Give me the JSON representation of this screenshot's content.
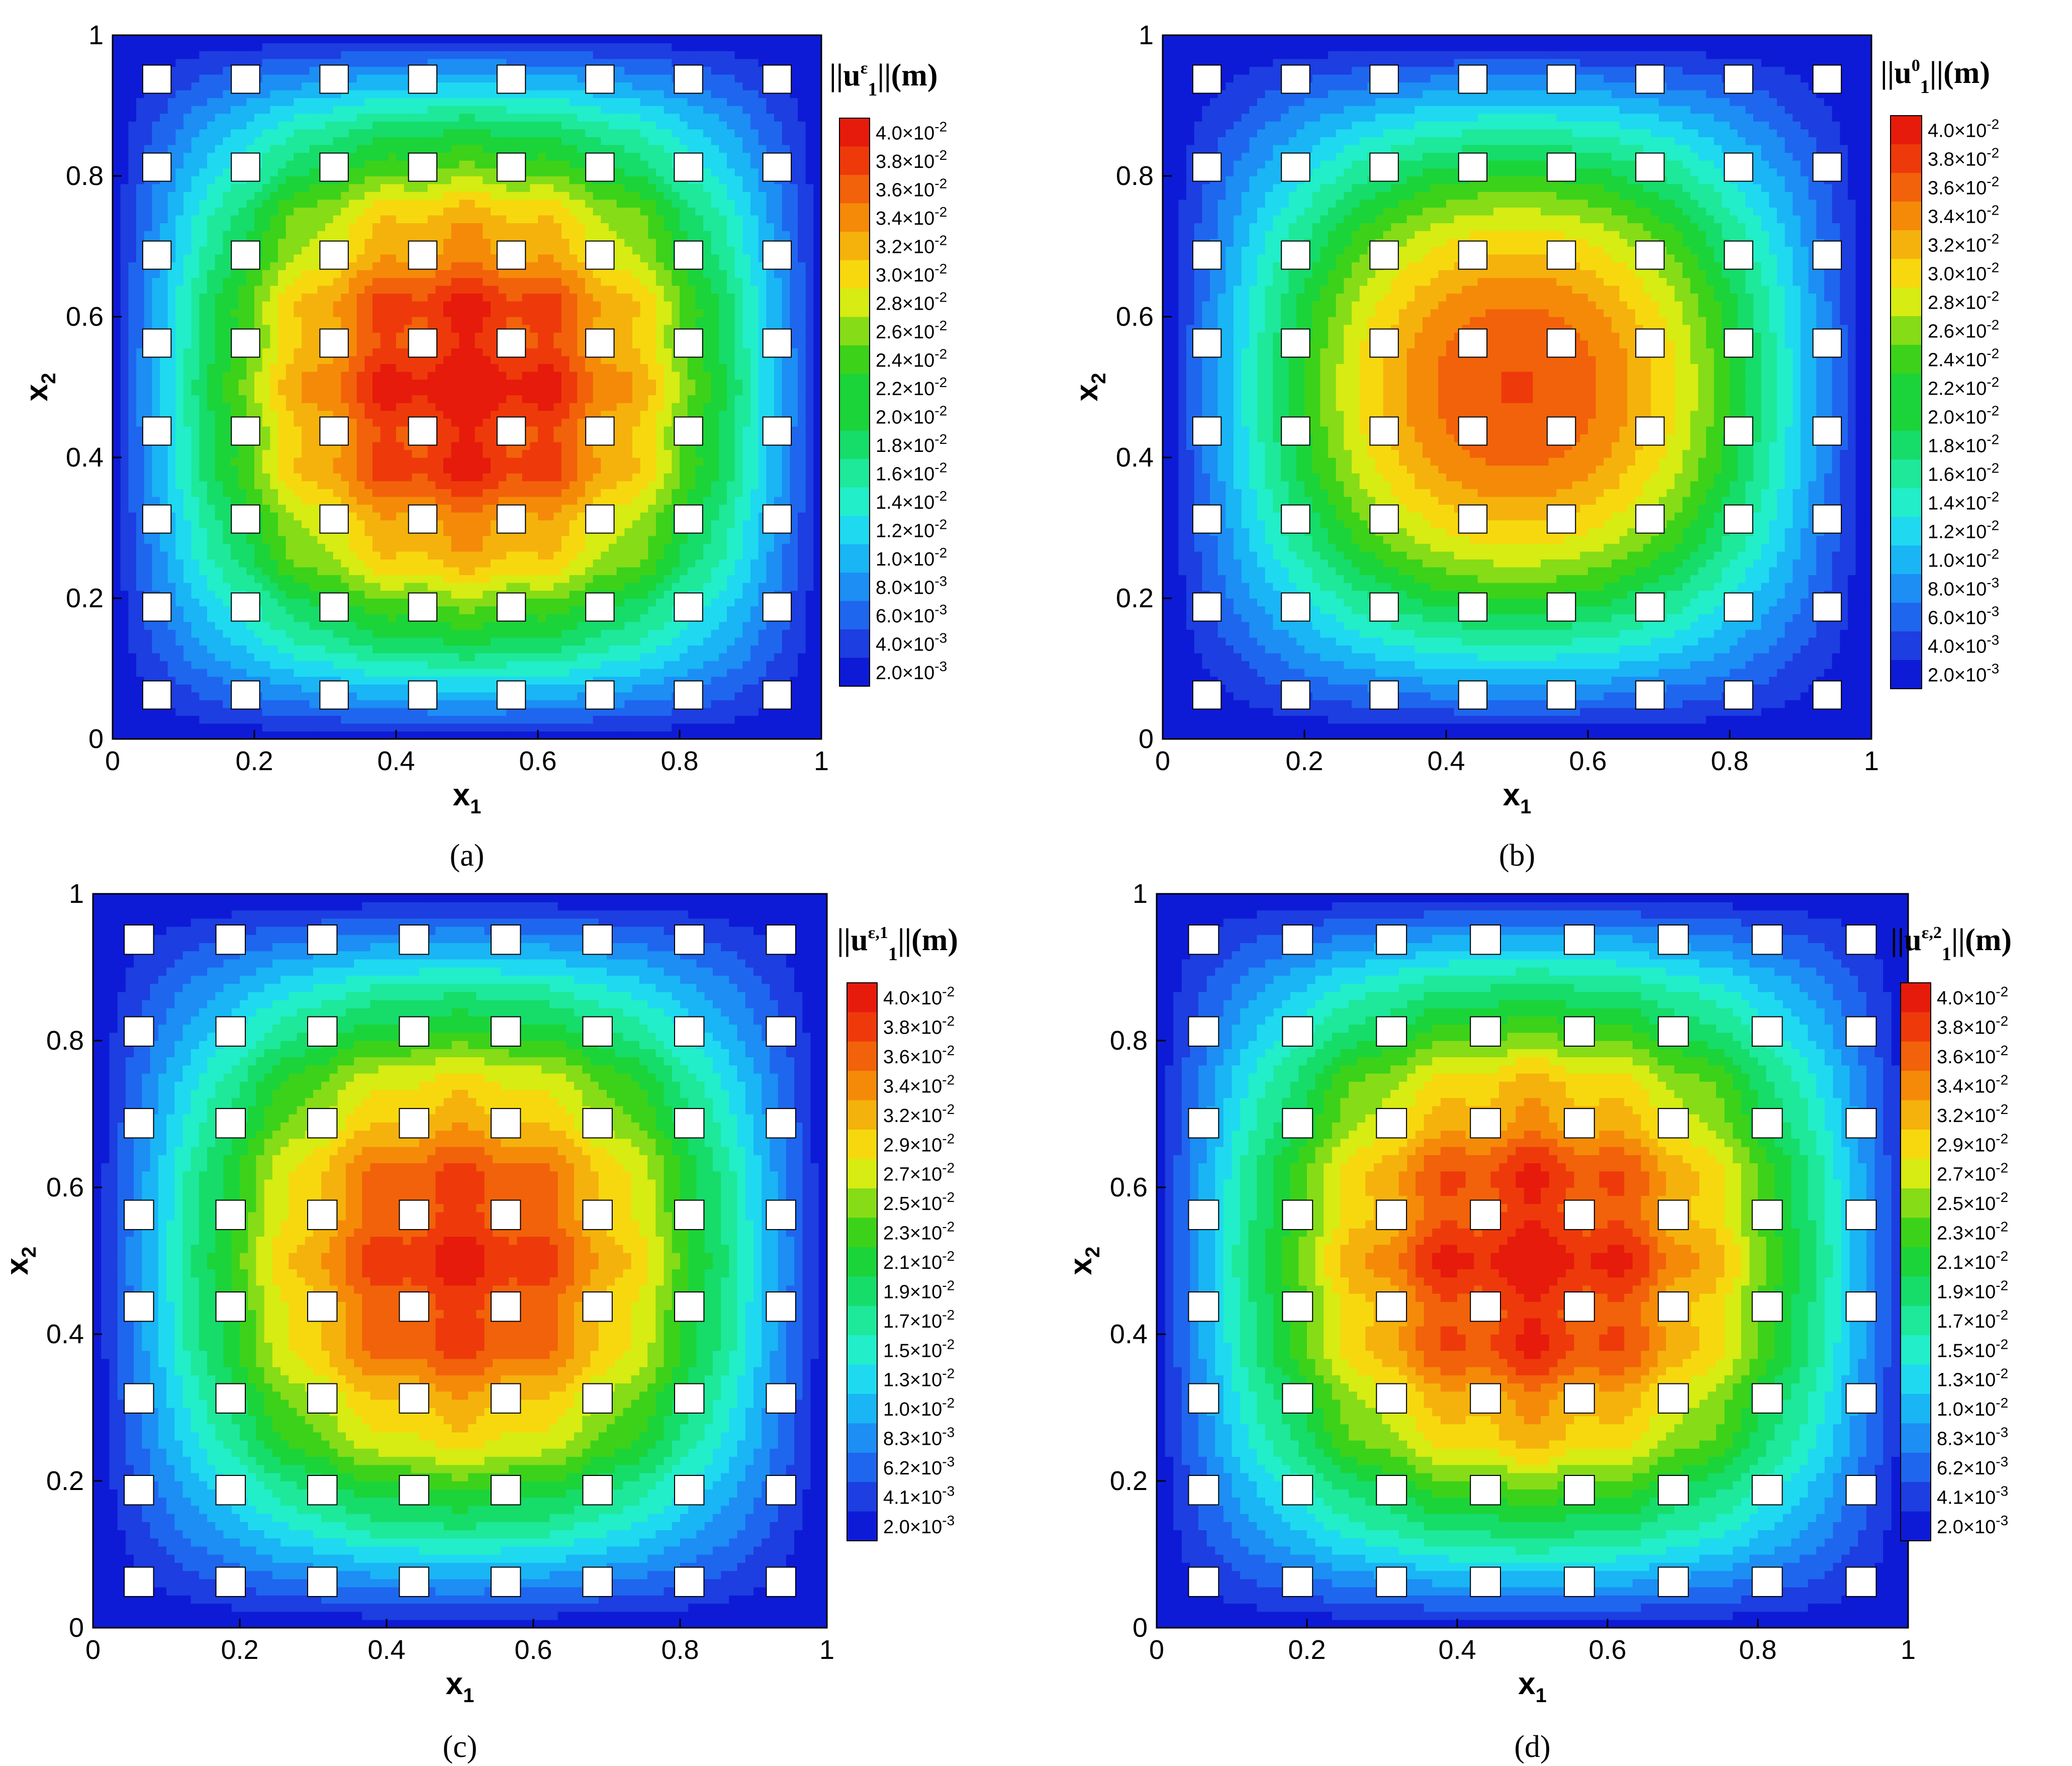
{
  "levels": [
    "#0d1bd6",
    "#1d3ee0",
    "#1f66ee",
    "#1c8ef4",
    "#19b5f5",
    "#1fd9f0",
    "#22eec9",
    "#1ee89a",
    "#16dc6a",
    "#1bd43a",
    "#3cd21a",
    "#86dc17",
    "#d6ec12",
    "#f7d80f",
    "#f5b20c",
    "#f58a09",
    "#f2620a",
    "#ee3a0b",
    "#e61b0b"
  ],
  "chart_data": [
    {
      "id": "a",
      "type": "heatmap",
      "caption": "(a)",
      "title": {
        "prefix": "||u",
        "sub": "1",
        "sup": "ε",
        "suffix": "||(m)"
      },
      "xlabel": {
        "base": "x",
        "sub": "1"
      },
      "ylabel": {
        "base": "x",
        "sub": "2"
      },
      "xlim": [
        0,
        1
      ],
      "ylim": [
        0,
        1
      ],
      "x_ticks": [
        "0",
        "0.2",
        "0.4",
        "0.6",
        "0.8",
        "1"
      ],
      "y_ticks": [
        "0",
        "0.2",
        "0.4",
        "0.6",
        "0.8",
        "1"
      ],
      "field": {
        "peak": 0.04,
        "min": 0.002,
        "shape": "periodic",
        "wiggle": 0.55,
        "plateau": 0.85
      },
      "colorbar_levels": [
        {
          "m": "4.0",
          "e": "-2"
        },
        {
          "m": "3.8",
          "e": "-2"
        },
        {
          "m": "3.6",
          "e": "-2"
        },
        {
          "m": "3.4",
          "e": "-2"
        },
        {
          "m": "3.2",
          "e": "-2"
        },
        {
          "m": "3.0",
          "e": "-2"
        },
        {
          "m": "2.8",
          "e": "-2"
        },
        {
          "m": "2.6",
          "e": "-2"
        },
        {
          "m": "2.4",
          "e": "-2"
        },
        {
          "m": "2.2",
          "e": "-2"
        },
        {
          "m": "2.0",
          "e": "-2"
        },
        {
          "m": "1.8",
          "e": "-2"
        },
        {
          "m": "1.6",
          "e": "-2"
        },
        {
          "m": "1.4",
          "e": "-2"
        },
        {
          "m": "1.2",
          "e": "-2"
        },
        {
          "m": "1.0",
          "e": "-2"
        },
        {
          "m": "8.0",
          "e": "-3"
        },
        {
          "m": "6.0",
          "e": "-3"
        },
        {
          "m": "4.0",
          "e": "-3"
        },
        {
          "m": "2.0",
          "e": "-3"
        }
      ]
    },
    {
      "id": "b",
      "type": "heatmap",
      "caption": "(b)",
      "title": {
        "prefix": "||u",
        "sub": "1",
        "sup": "0",
        "suffix": "||(m)"
      },
      "xlabel": {
        "base": "x",
        "sub": "1"
      },
      "ylabel": {
        "base": "x",
        "sub": "2"
      },
      "xlim": [
        0,
        1
      ],
      "ylim": [
        0,
        1
      ],
      "x_ticks": [
        "0",
        "0.2",
        "0.4",
        "0.6",
        "0.8",
        "1"
      ],
      "y_ticks": [
        "0",
        "0.2",
        "0.4",
        "0.6",
        "0.8",
        "1"
      ],
      "field": {
        "peak": 0.037,
        "min": 0.002,
        "shape": "smooth",
        "wiggle": 0.0,
        "plateau": 1.0
      },
      "colorbar_levels": [
        {
          "m": "4.0",
          "e": "-2"
        },
        {
          "m": "3.8",
          "e": "-2"
        },
        {
          "m": "3.6",
          "e": "-2"
        },
        {
          "m": "3.4",
          "e": "-2"
        },
        {
          "m": "3.2",
          "e": "-2"
        },
        {
          "m": "3.0",
          "e": "-2"
        },
        {
          "m": "2.8",
          "e": "-2"
        },
        {
          "m": "2.6",
          "e": "-2"
        },
        {
          "m": "2.4",
          "e": "-2"
        },
        {
          "m": "2.2",
          "e": "-2"
        },
        {
          "m": "2.0",
          "e": "-2"
        },
        {
          "m": "1.8",
          "e": "-2"
        },
        {
          "m": "1.6",
          "e": "-2"
        },
        {
          "m": "1.4",
          "e": "-2"
        },
        {
          "m": "1.2",
          "e": "-2"
        },
        {
          "m": "1.0",
          "e": "-2"
        },
        {
          "m": "8.0",
          "e": "-3"
        },
        {
          "m": "6.0",
          "e": "-3"
        },
        {
          "m": "4.0",
          "e": "-3"
        },
        {
          "m": "2.0",
          "e": "-3"
        }
      ]
    },
    {
      "id": "c",
      "type": "heatmap",
      "caption": "(c)",
      "title": {
        "prefix": "||u",
        "sub": "1",
        "sup": "ε,1",
        "suffix": "||(m)"
      },
      "xlabel": {
        "base": "x",
        "sub": "1"
      },
      "ylabel": {
        "base": "x",
        "sub": "2"
      },
      "xlim": [
        0,
        1
      ],
      "ylim": [
        0,
        1
      ],
      "x_ticks": [
        "0",
        "0.2",
        "0.4",
        "0.6",
        "0.8",
        "1"
      ],
      "y_ticks": [
        "0",
        "0.2",
        "0.4",
        "0.6",
        "0.8",
        "1"
      ],
      "field": {
        "peak": 0.0385,
        "min": 0.002,
        "shape": "periodic",
        "wiggle": 0.4,
        "plateau": 0.95
      },
      "colorbar_levels": [
        {
          "m": "4.0",
          "e": "-2"
        },
        {
          "m": "3.8",
          "e": "-2"
        },
        {
          "m": "3.6",
          "e": "-2"
        },
        {
          "m": "3.4",
          "e": "-2"
        },
        {
          "m": "3.2",
          "e": "-2"
        },
        {
          "m": "2.9",
          "e": "-2"
        },
        {
          "m": "2.7",
          "e": "-2"
        },
        {
          "m": "2.5",
          "e": "-2"
        },
        {
          "m": "2.3",
          "e": "-2"
        },
        {
          "m": "2.1",
          "e": "-2"
        },
        {
          "m": "1.9",
          "e": "-2"
        },
        {
          "m": "1.7",
          "e": "-2"
        },
        {
          "m": "1.5",
          "e": "-2"
        },
        {
          "m": "1.3",
          "e": "-2"
        },
        {
          "m": "1.0",
          "e": "-2"
        },
        {
          "m": "8.3",
          "e": "-3"
        },
        {
          "m": "6.2",
          "e": "-3"
        },
        {
          "m": "4.1",
          "e": "-3"
        },
        {
          "m": "2.0",
          "e": "-3"
        }
      ]
    },
    {
      "id": "d",
      "type": "heatmap",
      "caption": "(d)",
      "title": {
        "prefix": "||u",
        "sub": "1",
        "sup": "ε,2",
        "suffix": "||(m)"
      },
      "xlabel": {
        "base": "x",
        "sub": "1"
      },
      "ylabel": {
        "base": "x",
        "sub": "2"
      },
      "xlim": [
        0,
        1
      ],
      "ylim": [
        0,
        1
      ],
      "x_ticks": [
        "0",
        "0.2",
        "0.4",
        "0.6",
        "0.8",
        "1"
      ],
      "y_ticks": [
        "0",
        "0.2",
        "0.4",
        "0.6",
        "0.8",
        "1"
      ],
      "field": {
        "peak": 0.0395,
        "min": 0.002,
        "shape": "periodic",
        "wiggle": 0.55,
        "plateau": 0.87
      },
      "colorbar_levels": [
        {
          "m": "4.0",
          "e": "-2"
        },
        {
          "m": "3.8",
          "e": "-2"
        },
        {
          "m": "3.6",
          "e": "-2"
        },
        {
          "m": "3.4",
          "e": "-2"
        },
        {
          "m": "3.2",
          "e": "-2"
        },
        {
          "m": "2.9",
          "e": "-2"
        },
        {
          "m": "2.7",
          "e": "-2"
        },
        {
          "m": "2.5",
          "e": "-2"
        },
        {
          "m": "2.3",
          "e": "-2"
        },
        {
          "m": "2.1",
          "e": "-2"
        },
        {
          "m": "1.9",
          "e": "-2"
        },
        {
          "m": "1.7",
          "e": "-2"
        },
        {
          "m": "1.5",
          "e": "-2"
        },
        {
          "m": "1.3",
          "e": "-2"
        },
        {
          "m": "1.0",
          "e": "-2"
        },
        {
          "m": "8.3",
          "e": "-3"
        },
        {
          "m": "6.2",
          "e": "-3"
        },
        {
          "m": "4.1",
          "e": "-3"
        },
        {
          "m": "2.0",
          "e": "-3"
        }
      ]
    }
  ],
  "inclusions": {
    "x_centers": [
      0.0625,
      0.1875,
      0.3125,
      0.4375,
      0.5625,
      0.6875,
      0.8125,
      0.9375
    ],
    "y_centers": [
      0.0625,
      0.1875,
      0.3125,
      0.4375,
      0.5625,
      0.6875,
      0.8125,
      0.9375
    ],
    "size": 0.04
  }
}
